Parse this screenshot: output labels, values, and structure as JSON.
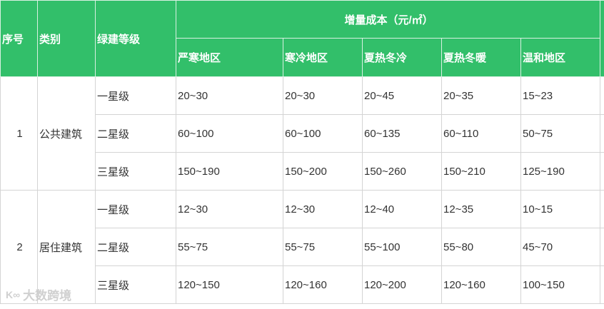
{
  "header": {
    "index": "序号",
    "category": "类别",
    "level": "绿建等级",
    "cost_group": "增量成本（元/㎡）",
    "regions": [
      "严寒地区",
      "寒冷地区",
      "夏热冬冷",
      "夏热冬暖",
      "温和地区"
    ]
  },
  "groups": [
    {
      "index": "1",
      "category": "公共建筑",
      "rows": [
        {
          "level": "一星级",
          "values": [
            "20~30",
            "20~30",
            "20~45",
            "20~35",
            "15~23"
          ]
        },
        {
          "level": "二星级",
          "values": [
            "60~100",
            "60~100",
            "60~135",
            "60~110",
            "50~75"
          ]
        },
        {
          "level": "三星级",
          "values": [
            "150~190",
            "150~200",
            "150~260",
            "150~210",
            "125~190"
          ]
        }
      ]
    },
    {
      "index": "2",
      "category": "居住建筑",
      "rows": [
        {
          "level": "一星级",
          "values": [
            "12~30",
            "12~30",
            "12~40",
            "12~35",
            "10~15"
          ]
        },
        {
          "level": "二星级",
          "values": [
            "55~75",
            "55~75",
            "55~100",
            "55~80",
            "45~70"
          ]
        },
        {
          "level": "三星级",
          "values": [
            "120~150",
            "120~160",
            "120~200",
            "120~160",
            "100~150"
          ]
        }
      ]
    }
  ],
  "watermark": "大数跨境",
  "colors": {
    "header_bg": "#32bf6a",
    "header_text": "#ffffff"
  }
}
